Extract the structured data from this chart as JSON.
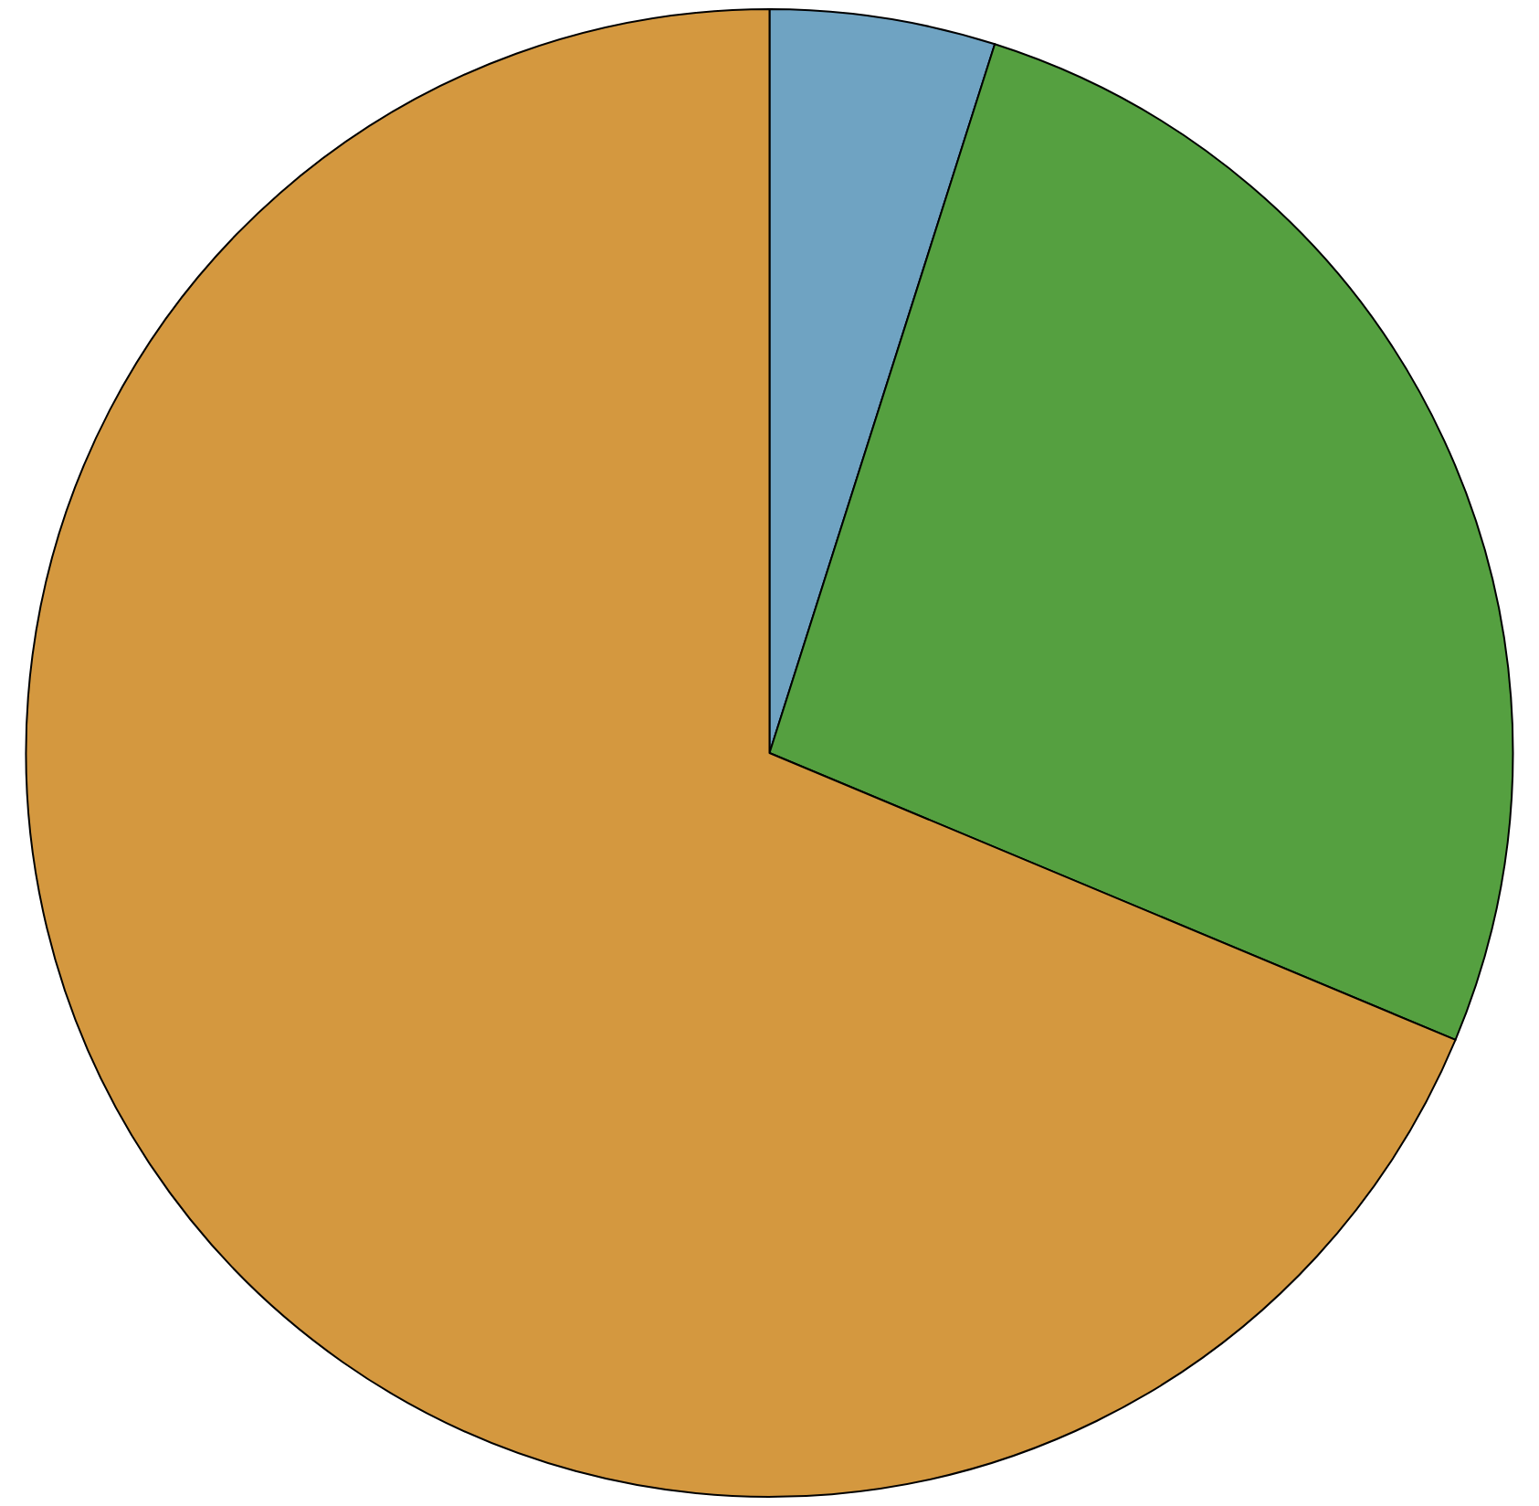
{
  "chart_data": {
    "type": "pie",
    "categories": [
      null,
      null,
      null
    ],
    "values": [
      4.9,
      26.4,
      68.7
    ],
    "colors": [
      "#6fa3c2",
      "#55a040",
      "#d4983f"
    ]
  }
}
